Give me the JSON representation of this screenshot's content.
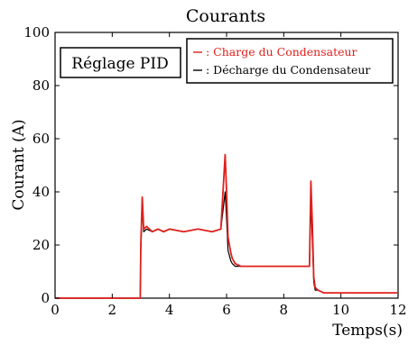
{
  "chart_data": {
    "type": "line",
    "title": "Courants",
    "xlabel": "Temps(s)",
    "ylabel": "Courant (A)",
    "xlim": [
      0,
      12
    ],
    "ylim": [
      0,
      100
    ],
    "xticks": [
      "0",
      "2",
      "4",
      "6",
      "8",
      "10",
      "12"
    ],
    "yticks": [
      "0",
      "20",
      "40",
      "60",
      "80",
      "100"
    ],
    "grid": false,
    "legend_position": "top-right",
    "annotation": "Réglage PID",
    "series": [
      {
        "name": ": Charge du Condensateur",
        "color": "#e0201c",
        "x": [
          0,
          2.98,
          3.0,
          3.05,
          3.1,
          3.2,
          3.4,
          3.6,
          3.8,
          4.0,
          4.5,
          5.0,
          5.5,
          5.8,
          5.95,
          6.0,
          6.05,
          6.1,
          6.15,
          6.2,
          6.3,
          6.5,
          7.0,
          7.5,
          8.0,
          8.5,
          8.9,
          8.95,
          9.0,
          9.05,
          9.1,
          9.2,
          9.4,
          10.0,
          11.0,
          12.0
        ],
        "y": [
          0,
          0,
          20,
          38,
          26,
          27,
          25,
          26,
          25,
          26,
          25,
          26,
          25,
          26,
          54,
          40,
          23,
          20,
          17,
          15,
          13,
          12,
          12,
          12,
          12,
          12,
          12,
          44,
          28,
          8,
          4,
          3,
          2,
          2,
          2,
          2
        ]
      },
      {
        "name": ": Décharge du Condensateur",
        "color": "#000000",
        "x": [
          0,
          2.98,
          3.0,
          3.05,
          3.1,
          3.2,
          3.4,
          3.6,
          3.8,
          4.0,
          4.5,
          5.0,
          5.5,
          5.8,
          5.95,
          6.0,
          6.05,
          6.1,
          6.15,
          6.2,
          6.3,
          6.5,
          7.0,
          7.5,
          8.0,
          8.5,
          8.9,
          8.95,
          9.0,
          9.05,
          9.1,
          9.2,
          9.4,
          10.0,
          11.0,
          12.0
        ],
        "y": [
          0,
          0,
          18,
          34,
          25,
          26,
          25,
          26,
          25,
          26,
          25,
          26,
          25,
          26,
          40,
          30,
          18,
          16,
          14,
          13,
          12,
          12,
          12,
          12,
          12,
          12,
          12,
          36,
          22,
          6,
          3,
          3,
          2,
          2,
          2,
          2
        ]
      }
    ]
  }
}
